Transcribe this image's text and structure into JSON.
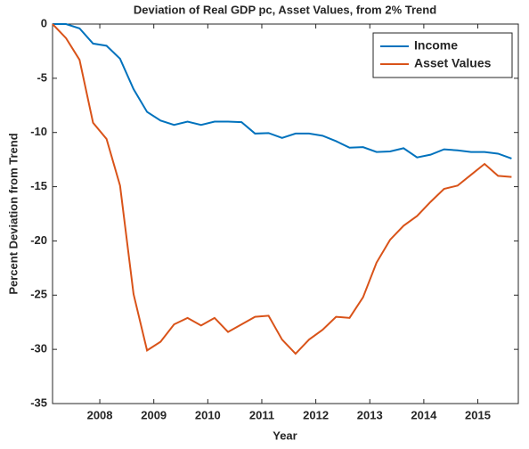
{
  "chart_data": {
    "type": "line",
    "title": "Deviation of Real GDP pc, Asset Values, from 2% Trend",
    "xlabel": "Year",
    "ylabel": "Percent Deviation from Trend",
    "x": [
      2007.125,
      2007.375,
      2007.625,
      2007.875,
      2008.125,
      2008.375,
      2008.625,
      2008.875,
      2009.125,
      2009.375,
      2009.625,
      2009.875,
      2010.125,
      2010.375,
      2010.625,
      2010.875,
      2011.125,
      2011.375,
      2011.625,
      2011.875,
      2012.125,
      2012.375,
      2012.625,
      2012.875,
      2013.125,
      2013.375,
      2013.625,
      2013.875,
      2014.125,
      2014.375,
      2014.625,
      2014.875,
      2015.125,
      2015.375,
      2015.625
    ],
    "series": [
      {
        "name": "Income",
        "color": "#0072bd",
        "values": [
          0,
          0,
          -0.4,
          -1.8,
          -2.0,
          -3.2,
          -6.0,
          -8.1,
          -8.9,
          -9.3,
          -9.0,
          -9.3,
          -9.0,
          -9.0,
          -9.05,
          -10.1,
          -10.05,
          -10.5,
          -10.1,
          -10.1,
          -10.3,
          -10.8,
          -11.4,
          -11.35,
          -11.8,
          -11.75,
          -11.45,
          -12.3,
          -12.05,
          -11.55,
          -11.65,
          -11.8,
          -11.8,
          -11.95,
          -12.4
        ]
      },
      {
        "name": "Asset Values",
        "color": "#d95319",
        "values": [
          0,
          -1.3,
          -3.3,
          -9.1,
          -10.6,
          -14.9,
          -24.9,
          -30.1,
          -29.3,
          -27.7,
          -27.1,
          -27.8,
          -27.1,
          -28.4,
          -27.7,
          -27.0,
          -26.9,
          -29.1,
          -30.4,
          -29.1,
          -28.2,
          -27.0,
          -27.1,
          -25.2,
          -22.0,
          -19.9,
          -18.6,
          -17.7,
          -16.4,
          -15.2,
          -14.9,
          -13.9,
          -12.9,
          -14.0,
          -14.1
        ]
      }
    ],
    "xlim": [
      2007.125,
      2015.75
    ],
    "xticks": [
      2008,
      2009,
      2010,
      2011,
      2012,
      2013,
      2014,
      2015
    ],
    "ylim": [
      -35,
      0
    ],
    "yticks": [
      -35,
      -30,
      -25,
      -20,
      -15,
      -10,
      -5,
      0
    ],
    "legend": "upper right"
  }
}
